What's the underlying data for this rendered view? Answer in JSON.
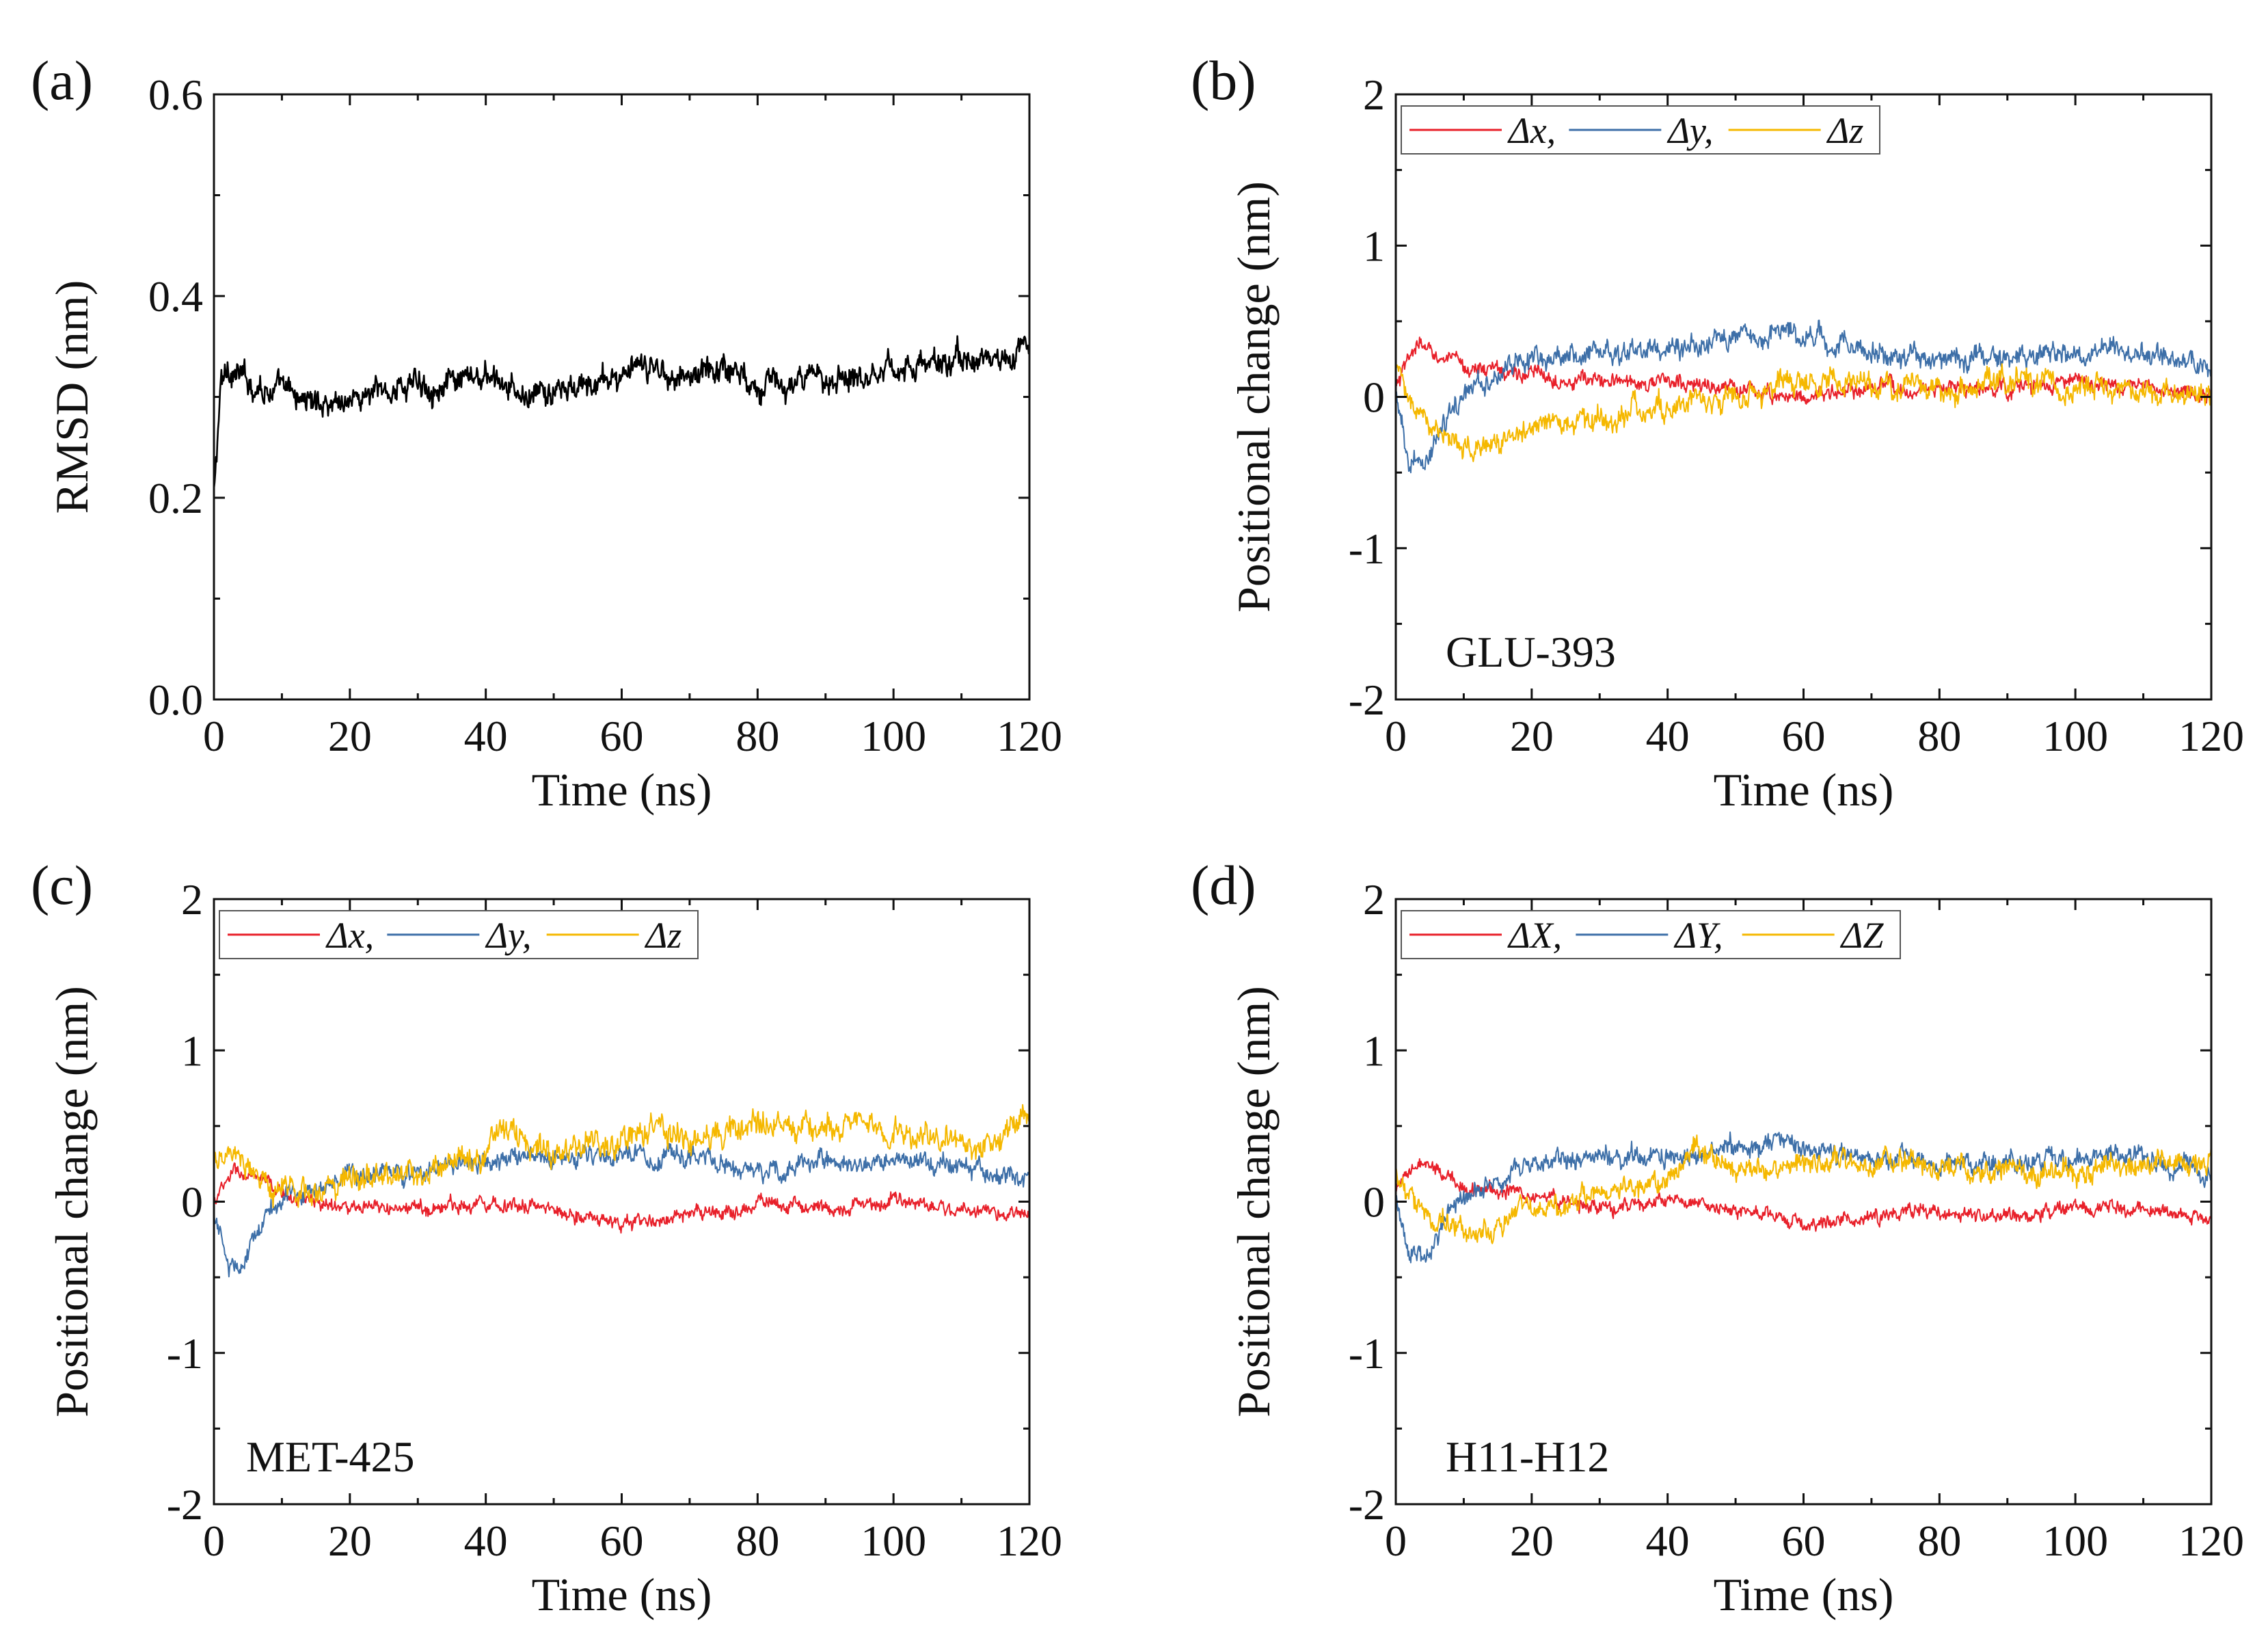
{
  "chart_data": [
    {
      "panel": "(a)",
      "type": "line",
      "xlabel": "Time (ns)",
      "ylabel": "RMSD (nm)",
      "xlim": [
        0,
        120
      ],
      "ylim": [
        0.0,
        0.6
      ],
      "xticks": [
        "0",
        "20",
        "40",
        "60",
        "80",
        "100",
        "120"
      ],
      "yticks": [
        "0.0",
        "0.2",
        "0.4",
        "0.6"
      ],
      "annotation": "",
      "legend": [],
      "series": [
        {
          "name": "",
          "color": "#000000",
          "anchors": [
            [
              0,
              0.2
            ],
            [
              1,
              0.31
            ],
            [
              2,
              0.33
            ],
            [
              5,
              0.315
            ],
            [
              10,
              0.305
            ],
            [
              15,
              0.295
            ],
            [
              20,
              0.298
            ],
            [
              25,
              0.305
            ],
            [
              30,
              0.315
            ],
            [
              35,
              0.31
            ],
            [
              40,
              0.32
            ],
            [
              45,
              0.3
            ],
            [
              50,
              0.303
            ],
            [
              55,
              0.31
            ],
            [
              60,
              0.322
            ],
            [
              65,
              0.328
            ],
            [
              70,
              0.32
            ],
            [
              75,
              0.332
            ],
            [
              80,
              0.315
            ],
            [
              85,
              0.31
            ],
            [
              90,
              0.32
            ],
            [
              95,
              0.325
            ],
            [
              100,
              0.33
            ],
            [
              105,
              0.33
            ],
            [
              110,
              0.338
            ],
            [
              115,
              0.335
            ],
            [
              120,
              0.35
            ]
          ],
          "noise": 0.014
        }
      ]
    },
    {
      "panel": "(b)",
      "type": "line",
      "xlabel": "Time (ns)",
      "ylabel": "Positional change (nm)",
      "xlim": [
        0,
        120
      ],
      "ylim": [
        -2,
        2
      ],
      "xticks": [
        "0",
        "20",
        "40",
        "60",
        "80",
        "100",
        "120"
      ],
      "yticks": [
        "-2",
        "-1",
        "0",
        "1",
        "2"
      ],
      "annotation": "GLU-393",
      "legend": [
        "Δx,",
        "Δy,",
        "Δz"
      ],
      "series": [
        {
          "name": "Δx,",
          "color": "#e8202a",
          "anchors": [
            [
              0,
              0.05
            ],
            [
              3,
              0.35
            ],
            [
              5,
              0.3
            ],
            [
              10,
              0.2
            ],
            [
              20,
              0.15
            ],
            [
              30,
              0.1
            ],
            [
              40,
              0.1
            ],
            [
              50,
              0.05
            ],
            [
              60,
              0.0
            ],
            [
              70,
              0.05
            ],
            [
              80,
              0.05
            ],
            [
              90,
              0.05
            ],
            [
              100,
              0.1
            ],
            [
              110,
              0.05
            ],
            [
              120,
              0.0
            ]
          ],
          "noise": 0.055
        },
        {
          "name": "Δy,",
          "color": "#3d6fa8",
          "anchors": [
            [
              0,
              0.0
            ],
            [
              2,
              -0.45
            ],
            [
              4,
              -0.5
            ],
            [
              8,
              -0.1
            ],
            [
              12,
              0.1
            ],
            [
              20,
              0.25
            ],
            [
              30,
              0.3
            ],
            [
              40,
              0.3
            ],
            [
              50,
              0.4
            ],
            [
              58,
              0.45
            ],
            [
              60,
              0.4
            ],
            [
              70,
              0.3
            ],
            [
              80,
              0.25
            ],
            [
              90,
              0.25
            ],
            [
              100,
              0.3
            ],
            [
              110,
              0.3
            ],
            [
              120,
              0.2
            ]
          ],
          "noise": 0.075
        },
        {
          "name": "Δz",
          "color": "#f5b800",
          "anchors": [
            [
              0,
              0.2
            ],
            [
              3,
              -0.1
            ],
            [
              6,
              -0.25
            ],
            [
              10,
              -0.35
            ],
            [
              15,
              -0.3
            ],
            [
              20,
              -0.2
            ],
            [
              30,
              -0.15
            ],
            [
              40,
              -0.05
            ],
            [
              50,
              0.0
            ],
            [
              60,
              0.1
            ],
            [
              70,
              0.1
            ],
            [
              80,
              0.05
            ],
            [
              90,
              0.1
            ],
            [
              100,
              0.05
            ],
            [
              110,
              0.05
            ],
            [
              120,
              0.0
            ]
          ],
          "noise": 0.085
        }
      ]
    },
    {
      "panel": "(c)",
      "type": "line",
      "xlabel": "Time (ns)",
      "ylabel": "Positional change (nm)",
      "xlim": [
        0,
        120
      ],
      "ylim": [
        -2,
        2
      ],
      "xticks": [
        "0",
        "20",
        "40",
        "60",
        "80",
        "100",
        "120"
      ],
      "yticks": [
        "-2",
        "-1",
        "0",
        "1",
        "2"
      ],
      "annotation": "MET-425",
      "legend": [
        "Δx,",
        "Δy,",
        "Δz"
      ],
      "series": [
        {
          "name": "Δx,",
          "color": "#e8202a",
          "anchors": [
            [
              0,
              0.0
            ],
            [
              3,
              0.2
            ],
            [
              6,
              0.15
            ],
            [
              10,
              0.05
            ],
            [
              20,
              -0.05
            ],
            [
              30,
              -0.05
            ],
            [
              40,
              0.0
            ],
            [
              50,
              -0.05
            ],
            [
              60,
              -0.15
            ],
            [
              70,
              -0.1
            ],
            [
              78,
              -0.05
            ],
            [
              80,
              0.0
            ],
            [
              90,
              -0.05
            ],
            [
              100,
              0.0
            ],
            [
              110,
              -0.05
            ],
            [
              120,
              -0.1
            ]
          ],
          "noise": 0.05
        },
        {
          "name": "Δy,",
          "color": "#3d6fa8",
          "anchors": [
            [
              0,
              -0.1
            ],
            [
              2,
              -0.4
            ],
            [
              4,
              -0.45
            ],
            [
              7,
              -0.1
            ],
            [
              10,
              0.0
            ],
            [
              15,
              0.1
            ],
            [
              20,
              0.2
            ],
            [
              30,
              0.2
            ],
            [
              40,
              0.25
            ],
            [
              45,
              0.3
            ],
            [
              50,
              0.3
            ],
            [
              60,
              0.3
            ],
            [
              70,
              0.3
            ],
            [
              80,
              0.2
            ],
            [
              90,
              0.25
            ],
            [
              100,
              0.25
            ],
            [
              110,
              0.25
            ],
            [
              120,
              0.15
            ]
          ],
          "noise": 0.07
        },
        {
          "name": "Δz",
          "color": "#f5b800",
          "anchors": [
            [
              0,
              0.3
            ],
            [
              2,
              0.35
            ],
            [
              5,
              0.15
            ],
            [
              10,
              0.05
            ],
            [
              15,
              0.05
            ],
            [
              20,
              0.15
            ],
            [
              30,
              0.2
            ],
            [
              40,
              0.3
            ],
            [
              42,
              0.55
            ],
            [
              45,
              0.4
            ],
            [
              50,
              0.3
            ],
            [
              60,
              0.4
            ],
            [
              65,
              0.5
            ],
            [
              70,
              0.4
            ],
            [
              80,
              0.5
            ],
            [
              90,
              0.5
            ],
            [
              95,
              0.55
            ],
            [
              100,
              0.45
            ],
            [
              110,
              0.4
            ],
            [
              115,
              0.35
            ],
            [
              120,
              0.6
            ]
          ],
          "noise": 0.09
        }
      ]
    },
    {
      "panel": "(d)",
      "type": "line",
      "xlabel": "Time (ns)",
      "ylabel": "Positional change (nm)",
      "xlim": [
        0,
        120
      ],
      "ylim": [
        -2,
        2
      ],
      "xticks": [
        "0",
        "20",
        "40",
        "60",
        "80",
        "100",
        "120"
      ],
      "yticks": [
        "-2",
        "-1",
        "0",
        "1",
        "2"
      ],
      "annotation": "H11-H12",
      "legend": [
        "ΔX,",
        "ΔY,",
        "ΔZ"
      ],
      "series": [
        {
          "name": "ΔX,",
          "color": "#e8202a",
          "anchors": [
            [
              0,
              0.05
            ],
            [
              3,
              0.25
            ],
            [
              6,
              0.2
            ],
            [
              10,
              0.1
            ],
            [
              20,
              0.05
            ],
            [
              30,
              -0.05
            ],
            [
              40,
              0.0
            ],
            [
              50,
              -0.05
            ],
            [
              60,
              -0.15
            ],
            [
              70,
              -0.1
            ],
            [
              80,
              -0.05
            ],
            [
              90,
              -0.1
            ],
            [
              100,
              -0.05
            ],
            [
              110,
              -0.05
            ],
            [
              120,
              -0.1
            ]
          ],
          "noise": 0.05
        },
        {
          "name": "ΔY,",
          "color": "#3d6fa8",
          "anchors": [
            [
              0,
              0.0
            ],
            [
              2,
              -0.35
            ],
            [
              4,
              -0.4
            ],
            [
              8,
              -0.05
            ],
            [
              12,
              0.05
            ],
            [
              20,
              0.25
            ],
            [
              30,
              0.3
            ],
            [
              40,
              0.3
            ],
            [
              50,
              0.35
            ],
            [
              58,
              0.4
            ],
            [
              60,
              0.35
            ],
            [
              70,
              0.3
            ],
            [
              80,
              0.25
            ],
            [
              90,
              0.25
            ],
            [
              100,
              0.3
            ],
            [
              110,
              0.3
            ],
            [
              120,
              0.2
            ]
          ],
          "noise": 0.07
        },
        {
          "name": "ΔZ",
          "color": "#f5b800",
          "anchors": [
            [
              0,
              0.2
            ],
            [
              3,
              0.0
            ],
            [
              6,
              -0.15
            ],
            [
              10,
              -0.2
            ],
            [
              15,
              -0.15
            ],
            [
              20,
              -0.05
            ],
            [
              30,
              0.05
            ],
            [
              40,
              0.15
            ],
            [
              44,
              0.35
            ],
            [
              50,
              0.2
            ],
            [
              60,
              0.25
            ],
            [
              70,
              0.25
            ],
            [
              80,
              0.25
            ],
            [
              90,
              0.2
            ],
            [
              100,
              0.2
            ],
            [
              110,
              0.2
            ],
            [
              120,
              0.3
            ]
          ],
          "noise": 0.08
        }
      ]
    }
  ]
}
